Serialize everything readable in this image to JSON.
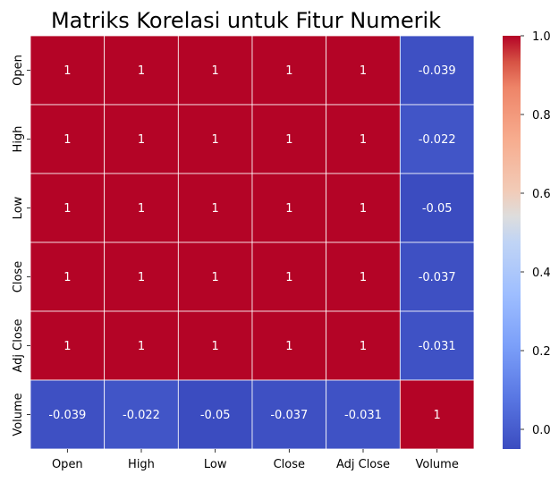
{
  "chart_data": {
    "type": "heatmap",
    "title": "Matriks Korelasi untuk Fitur Numerik",
    "xlabel": "",
    "ylabel": "",
    "x_categories": [
      "Open",
      "High",
      "Low",
      "Close",
      "Adj Close",
      "Volume"
    ],
    "y_categories": [
      "Open",
      "High",
      "Low",
      "Close",
      "Adj Close",
      "Volume"
    ],
    "values": [
      [
        1,
        1,
        1,
        1,
        1,
        -0.039
      ],
      [
        1,
        1,
        1,
        1,
        1,
        -0.022
      ],
      [
        1,
        1,
        1,
        1,
        1,
        -0.05
      ],
      [
        1,
        1,
        1,
        1,
        1,
        -0.037
      ],
      [
        1,
        1,
        1,
        1,
        1,
        -0.031
      ],
      [
        -0.039,
        -0.022,
        -0.05,
        -0.037,
        -0.031,
        1
      ]
    ],
    "annotations": [
      [
        "1",
        "1",
        "1",
        "1",
        "1",
        "-0.039"
      ],
      [
        "1",
        "1",
        "1",
        "1",
        "1",
        "-0.022"
      ],
      [
        "1",
        "1",
        "1",
        "1",
        "1",
        "-0.05"
      ],
      [
        "1",
        "1",
        "1",
        "1",
        "1",
        "-0.037"
      ],
      [
        "1",
        "1",
        "1",
        "1",
        "1",
        "-0.031"
      ],
      [
        "-0.039",
        "-0.022",
        "-0.05",
        "-0.037",
        "-0.031",
        "1"
      ]
    ],
    "colormap": "coolwarm",
    "color_range": [
      -0.05,
      1.0
    ],
    "colorbar_ticks": [
      0.0,
      0.2,
      0.4,
      0.6,
      0.8,
      1.0
    ],
    "colorbar_tick_labels": [
      "0.0",
      "0.2",
      "0.4",
      "0.6",
      "0.8",
      "1.0"
    ],
    "legend": "colorbar-right",
    "grid": false,
    "colors": {
      "high": "#b40426",
      "low": "#3b4cc0",
      "mid": "#dddddd",
      "cell_border": "#ffffff",
      "text_on_cell": "#ffffff"
    }
  }
}
